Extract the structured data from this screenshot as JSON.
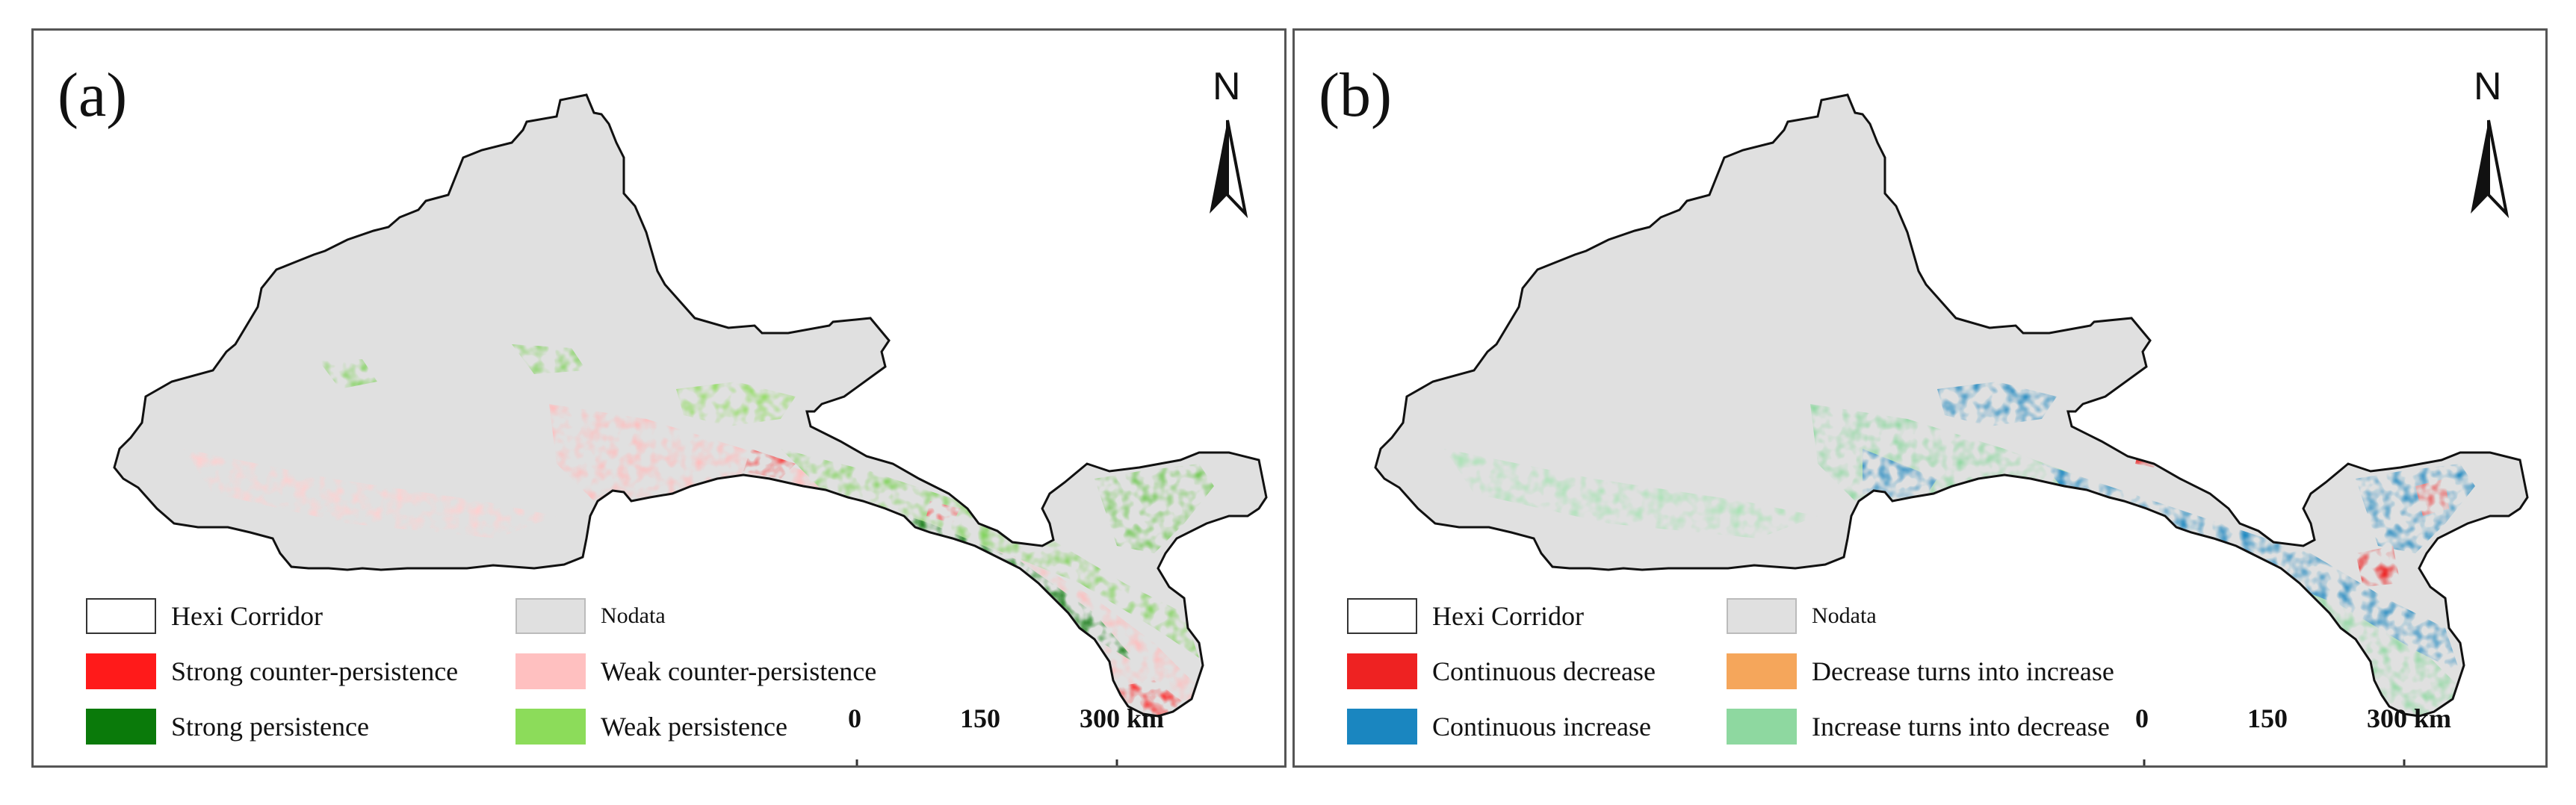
{
  "panels": [
    {
      "label": "(a)",
      "north": "N",
      "legend": [
        {
          "text": "Hexi Corridor",
          "color": "#ffffff"
        },
        {
          "text": "Nodata",
          "color": "#e0e0e0"
        },
        {
          "text": "Strong counter-persistence",
          "color": "#ff1a1a"
        },
        {
          "text": "Weak counter-persistence",
          "color": "#ffc0c0"
        },
        {
          "text": "Strong persistence",
          "color": "#0a7a0a"
        },
        {
          "text": "Weak persistence",
          "color": "#8cdc5a"
        }
      ],
      "scale": {
        "ticks": [
          "0",
          "150",
          "300 km"
        ]
      }
    },
    {
      "label": "(b)",
      "north": "N",
      "legend": [
        {
          "text": "Hexi Corridor",
          "color": "#ffffff"
        },
        {
          "text": "Nodata",
          "color": "#e0e0e0"
        },
        {
          "text": "Continuous decrease",
          "color": "#ee2222"
        },
        {
          "text": "Decrease turns into increase",
          "color": "#f5a65b"
        },
        {
          "text": "Continuous increase",
          "color": "#1a86c0"
        },
        {
          "text": "Increase turns into decrease",
          "color": "#8ed8a0"
        }
      ],
      "scale": {
        "ticks": [
          "0",
          "150",
          "300 km"
        ]
      }
    }
  ]
}
